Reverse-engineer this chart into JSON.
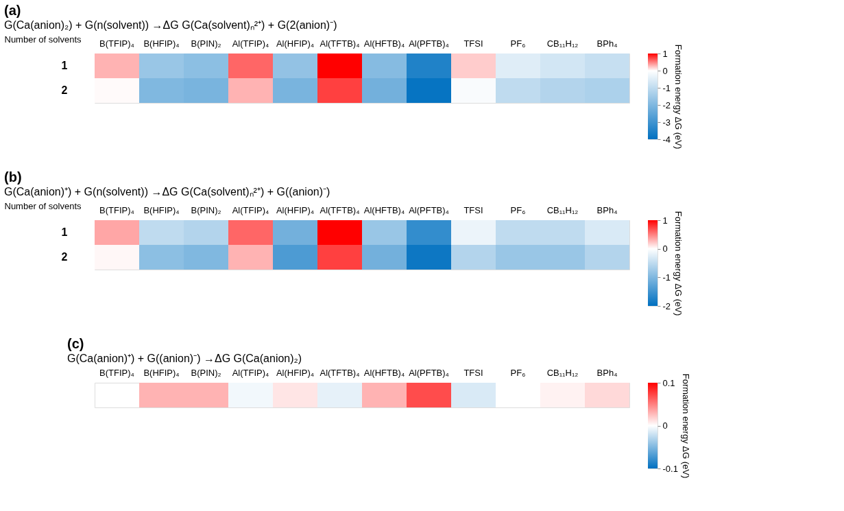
{
  "chart_data": [
    {
      "type": "heatmap",
      "title": "(a)",
      "subtitle": "G(Ca(anion)₂) + G(n(solvent)) →ΔG G(Ca(solvent)ₙ²⁺) + G(2(anion)⁻)",
      "ylabel": "Number of solvents",
      "clabel": "Formation energy ΔG (eV)",
      "categories": [
        "B(TFIP)₄",
        "B(HFIP)₄",
        "B(PIN)₂",
        "Al(TFIP)₄",
        "Al(HFIP)₄",
        "Al(TFTB)₄",
        "Al(HFTB)₄",
        "Al(PFTB)₄",
        "TFSI",
        "PF₆",
        "CB₁₁H₁₂",
        "BPh₄"
      ],
      "y_categories": [
        "1",
        "2"
      ],
      "cells": [
        [
          0.3,
          -1.6,
          -1.8,
          0.6,
          -1.7,
          1.0,
          -1.9,
          -3.5,
          0.2,
          -0.5,
          -0.7,
          -0.9
        ],
        [
          0.02,
          -2.0,
          -2.1,
          0.3,
          -2.1,
          0.75,
          -2.2,
          -3.9,
          -0.1,
          -1.0,
          -1.2,
          -1.3
        ]
      ],
      "clim": [
        -4,
        1
      ],
      "cticks": [
        -4,
        -3,
        -2,
        -1,
        0,
        1
      ]
    },
    {
      "type": "heatmap",
      "title": "(b)",
      "subtitle": "G(Ca(anion)⁺) + G(n(solvent)) →ΔG G(Ca(solvent)ₙ²⁺) + G((anion)⁻)",
      "ylabel": "Number of solvents",
      "clabel": "Formation energy ΔG (eV)",
      "categories": [
        "B(TFIP)₄",
        "B(HFIP)₄",
        "B(PIN)₂",
        "Al(TFIP)₄",
        "Al(HFIP)₄",
        "Al(TFTB)₄",
        "Al(HFTB)₄",
        "Al(PFTB)₄",
        "TFSI",
        "PF₆",
        "CB₁₁H₁₂",
        "BPh₄"
      ],
      "y_categories": [
        "1",
        "2"
      ],
      "cells": [
        [
          0.35,
          -0.5,
          -0.6,
          0.6,
          -1.1,
          1.0,
          -0.8,
          -1.6,
          -0.15,
          -0.5,
          -0.5,
          -0.3
        ],
        [
          0.03,
          -0.9,
          -1.0,
          0.3,
          -1.4,
          0.75,
          -1.1,
          -1.9,
          -0.6,
          -0.8,
          -0.8,
          -0.6
        ]
      ],
      "clim": [
        -2,
        1
      ],
      "cticks": [
        -2,
        -1,
        0,
        1
      ]
    },
    {
      "type": "heatmap",
      "title": "(c)",
      "subtitle": "G(Ca(anion)⁺) + G((anion)⁻) →ΔG G(Ca(anion)₂)",
      "clabel": "Formation energy ΔG (eV)",
      "categories": [
        "B(TFIP)₄",
        "B(HFIP)₄",
        "B(PIN)₂",
        "Al(TFIP)₄",
        "Al(HFIP)₄",
        "Al(TFTB)₄",
        "Al(HFTB)₄",
        "Al(PFTB)₄",
        "TFSI",
        "PF₆",
        "CB₁₁H₁₂",
        "BPh₄"
      ],
      "y_categories": [
        null
      ],
      "cells": [
        [
          null,
          0.03,
          0.03,
          -0.005,
          0.01,
          -0.01,
          0.03,
          0.07,
          -0.015,
          0.0,
          0.005,
          0.015
        ]
      ],
      "clim": [
        -0.1,
        0.1
      ],
      "cticks": [
        -0.1,
        0,
        0.1
      ]
    }
  ]
}
